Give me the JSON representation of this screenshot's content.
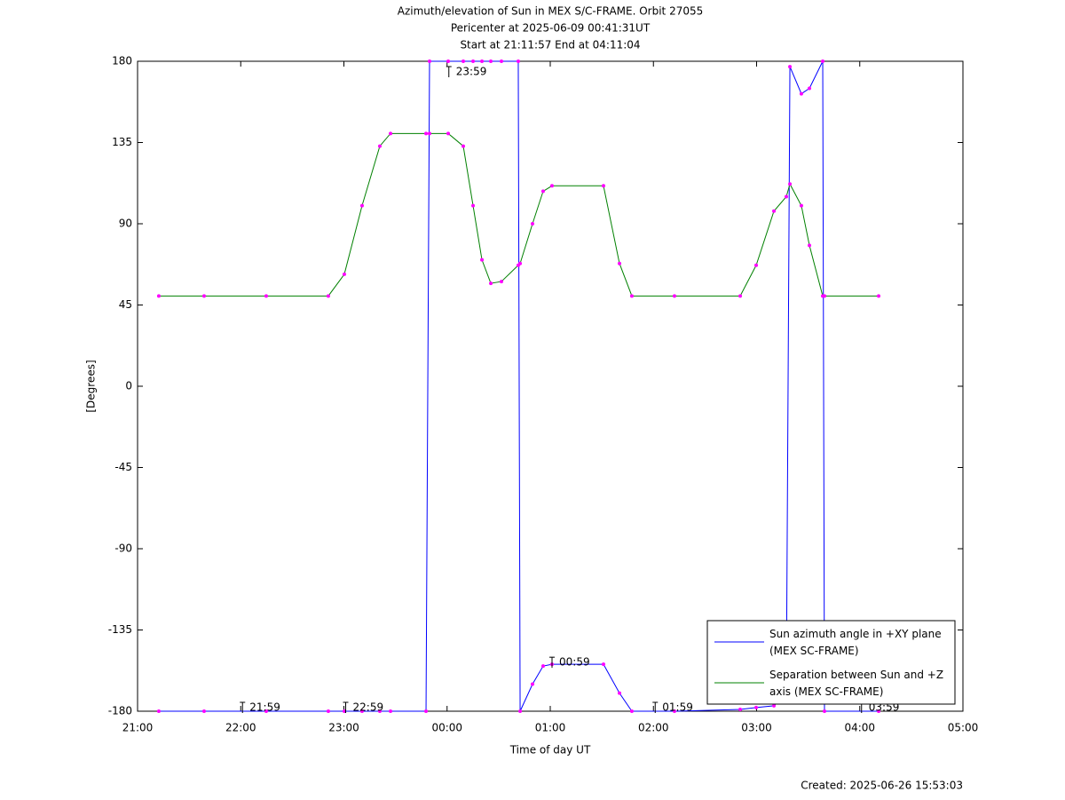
{
  "chart_data": {
    "type": "line",
    "title": "Azimuth/elevation of Sun in MEX S/C-FRAME.  Orbit 27055",
    "subtitle": "Pericenter at 2025-06-09 00:41:31UT",
    "subtitle2": "Start at 21:11:57 End at 04:11:04",
    "x_label": "Time of day UT",
    "y_label": "[Degrees]",
    "footer": "Created: 2025-06-26 15:53:03",
    "xlim": [
      21,
      29
    ],
    "xticks": [
      {
        "value": 21,
        "label": "21:00"
      },
      {
        "value": 22,
        "label": "22:00"
      },
      {
        "value": 23,
        "label": "23:00"
      },
      {
        "value": 24,
        "label": "00:00"
      },
      {
        "value": 25,
        "label": "01:00"
      },
      {
        "value": 26,
        "label": "02:00"
      },
      {
        "value": 27,
        "label": "03:00"
      },
      {
        "value": 28,
        "label": "04:00"
      },
      {
        "value": 29,
        "label": "05:00"
      }
    ],
    "ylim": [
      -180,
      180
    ],
    "yticks": [
      180,
      135,
      90,
      45,
      0,
      -45,
      -90,
      -135,
      -180
    ],
    "x": [
      21.206,
      21.645,
      22.247,
      22.849,
      23.004,
      23.176,
      23.348,
      23.452,
      23.796,
      23.83,
      24.011,
      24.157,
      24.252,
      24.338,
      24.424,
      24.527,
      24.69,
      24.708,
      24.828,
      24.931,
      25.017,
      25.516,
      25.671,
      25.791,
      26.204,
      26.841,
      26.996,
      27.168,
      27.288,
      27.323,
      27.434,
      27.512,
      27.641,
      27.658,
      28.183
    ],
    "series": [
      {
        "name": "Sun azimuth angle in +XY plane (MEX SC-FRAME)",
        "color": "#0000ff",
        "values": [
          -180,
          -180,
          -180,
          -180,
          -180,
          -180,
          -180,
          -180,
          -180,
          180,
          180,
          180,
          180,
          180,
          180,
          180,
          180,
          -180,
          -165,
          -155,
          -154,
          -154,
          -170,
          -180,
          -180,
          -179,
          -178,
          -177,
          -170,
          177,
          162,
          165,
          180,
          -180,
          -180
        ]
      },
      {
        "name": "Separation between Sun and +Z axis (MEX SC-FRAME)",
        "color": "#008000",
        "values": [
          50,
          50,
          50,
          50,
          62,
          100,
          133,
          140,
          140,
          140,
          140,
          133,
          100,
          70,
          57,
          58,
          67,
          68,
          90,
          108,
          111,
          111,
          68,
          50,
          50,
          50,
          67,
          97,
          105,
          112,
          100,
          78,
          50,
          50,
          50
        ]
      }
    ],
    "marker_color": "#ff00ff",
    "annotations": [
      {
        "text": "23:59",
        "x": 24,
        "y": 180
      },
      {
        "text": "00:59",
        "x": 25,
        "y": -155
      },
      {
        "text": "21:59",
        "x": 22,
        "y": -180
      },
      {
        "text": "22:59",
        "x": 23,
        "y": -180
      },
      {
        "text": "01:59",
        "x": 26,
        "y": -180
      },
      {
        "text": "03:59",
        "x": 28,
        "y": -180
      }
    ],
    "legend": "lower right"
  }
}
